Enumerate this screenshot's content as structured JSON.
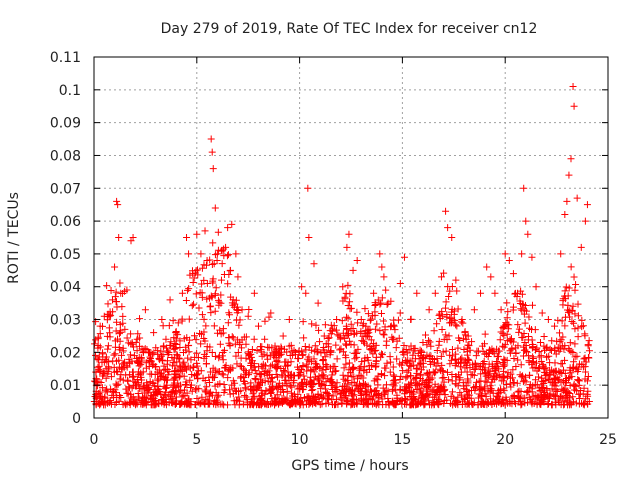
{
  "chart_data": {
    "type": "scatter",
    "title": "Day 279 of 2019, Rate Of TEC Index for receiver cn12",
    "xlabel": "GPS time / hours",
    "ylabel": "ROTI / TECUs",
    "xlim": [
      0,
      25
    ],
    "ylim": [
      0,
      0.11
    ],
    "xticks": [
      0,
      5,
      10,
      15,
      20,
      25
    ],
    "xtick_labels": [
      "0",
      "5",
      "10",
      "15",
      "20",
      "25"
    ],
    "yticks": [
      0,
      0.01,
      0.02,
      0.03,
      0.04,
      0.05,
      0.06,
      0.07,
      0.08,
      0.09,
      0.1,
      0.11
    ],
    "ytick_labels": [
      "0",
      "0.01",
      "0.02",
      "0.03",
      "0.04",
      "0.05",
      "0.06",
      "0.07",
      "0.08",
      "0.09",
      "0.1",
      "0.11"
    ],
    "grid": true,
    "marker": "+",
    "color": "#ff0000",
    "series": [
      {
        "name": "ROTI",
        "points": [
          [
            0.1,
            0.012
          ],
          [
            0.3,
            0.028
          ],
          [
            0.5,
            0.031
          ],
          [
            0.7,
            0.022
          ],
          [
            0.9,
            0.036
          ],
          [
            1.0,
            0.046
          ],
          [
            1.1,
            0.066
          ],
          [
            1.15,
            0.065
          ],
          [
            1.2,
            0.055
          ],
          [
            1.3,
            0.038
          ],
          [
            1.5,
            0.027
          ],
          [
            1.6,
            0.039
          ],
          [
            1.8,
            0.054
          ],
          [
            1.9,
            0.055
          ],
          [
            2.1,
            0.024
          ],
          [
            2.3,
            0.018
          ],
          [
            2.5,
            0.033
          ],
          [
            2.7,
            0.02
          ],
          [
            2.9,
            0.026
          ],
          [
            3.1,
            0.014
          ],
          [
            3.3,
            0.03
          ],
          [
            3.5,
            0.024
          ],
          [
            3.7,
            0.036
          ],
          [
            3.9,
            0.021
          ],
          [
            4.1,
            0.029
          ],
          [
            4.3,
            0.038
          ],
          [
            4.5,
            0.055
          ],
          [
            4.6,
            0.05
          ],
          [
            4.8,
            0.044
          ],
          [
            5.0,
            0.056
          ],
          [
            5.2,
            0.05
          ],
          [
            5.4,
            0.057
          ],
          [
            5.5,
            0.048
          ],
          [
            5.7,
            0.085
          ],
          [
            5.75,
            0.081
          ],
          [
            5.8,
            0.076
          ],
          [
            5.9,
            0.064
          ],
          [
            6.0,
            0.05
          ],
          [
            6.2,
            0.042
          ],
          [
            6.4,
            0.052
          ],
          [
            6.5,
            0.058
          ],
          [
            6.7,
            0.059
          ],
          [
            6.9,
            0.05
          ],
          [
            7.0,
            0.043
          ],
          [
            7.2,
            0.033
          ],
          [
            7.5,
            0.031
          ],
          [
            7.8,
            0.038
          ],
          [
            8.0,
            0.028
          ],
          [
            8.3,
            0.024
          ],
          [
            8.6,
            0.032
          ],
          [
            8.9,
            0.02
          ],
          [
            9.2,
            0.025
          ],
          [
            9.5,
            0.03
          ],
          [
            9.8,
            0.02
          ],
          [
            10.1,
            0.04
          ],
          [
            10.3,
            0.038
          ],
          [
            10.4,
            0.07
          ],
          [
            10.45,
            0.055
          ],
          [
            10.7,
            0.047
          ],
          [
            10.9,
            0.035
          ],
          [
            11.2,
            0.025
          ],
          [
            11.5,
            0.02
          ],
          [
            11.8,
            0.03
          ],
          [
            12.1,
            0.04
          ],
          [
            12.3,
            0.052
          ],
          [
            12.4,
            0.056
          ],
          [
            12.6,
            0.045
          ],
          [
            12.8,
            0.048
          ],
          [
            13.0,
            0.03
          ],
          [
            13.3,
            0.025
          ],
          [
            13.6,
            0.038
          ],
          [
            13.9,
            0.05
          ],
          [
            14.0,
            0.046
          ],
          [
            14.1,
            0.043
          ],
          [
            14.3,
            0.035
          ],
          [
            14.6,
            0.028
          ],
          [
            14.9,
            0.041
          ],
          [
            15.1,
            0.049
          ],
          [
            15.4,
            0.03
          ],
          [
            15.7,
            0.038
          ],
          [
            16.0,
            0.023
          ],
          [
            16.3,
            0.033
          ],
          [
            16.6,
            0.038
          ],
          [
            16.9,
            0.043
          ],
          [
            17.1,
            0.063
          ],
          [
            17.2,
            0.058
          ],
          [
            17.4,
            0.055
          ],
          [
            17.6,
            0.042
          ],
          [
            17.9,
            0.03
          ],
          [
            18.2,
            0.025
          ],
          [
            18.5,
            0.033
          ],
          [
            18.8,
            0.038
          ],
          [
            19.1,
            0.046
          ],
          [
            19.3,
            0.043
          ],
          [
            19.5,
            0.038
          ],
          [
            19.8,
            0.033
          ],
          [
            20.0,
            0.05
          ],
          [
            20.2,
            0.048
          ],
          [
            20.4,
            0.044
          ],
          [
            20.6,
            0.038
          ],
          [
            20.8,
            0.05
          ],
          [
            20.9,
            0.07
          ],
          [
            21.0,
            0.06
          ],
          [
            21.1,
            0.056
          ],
          [
            21.3,
            0.049
          ],
          [
            21.5,
            0.04
          ],
          [
            21.8,
            0.032
          ],
          [
            22.1,
            0.03
          ],
          [
            22.4,
            0.028
          ],
          [
            22.7,
            0.05
          ],
          [
            22.9,
            0.062
          ],
          [
            23.0,
            0.066
          ],
          [
            23.1,
            0.074
          ],
          [
            23.2,
            0.079
          ],
          [
            23.3,
            0.101
          ],
          [
            23.35,
            0.095
          ],
          [
            23.5,
            0.067
          ],
          [
            23.7,
            0.052
          ],
          [
            23.9,
            0.06
          ],
          [
            24.0,
            0.065
          ]
        ],
        "density_note": "dense band of markers between 0.004 and 0.03 across 0-24 h"
      }
    ]
  }
}
